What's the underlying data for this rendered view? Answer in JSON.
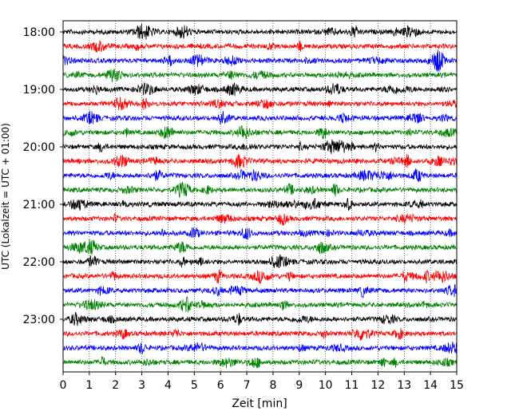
{
  "chart_data": {
    "type": "line",
    "chart_kind": "helicorder",
    "title": "",
    "xlabel": "Zeit  [min]",
    "ylabel": "UTC (Lokalzeit = UTC + 01:00)",
    "xlim": [
      0,
      15
    ],
    "x_ticks": [
      0,
      1,
      2,
      3,
      4,
      5,
      6,
      7,
      8,
      9,
      10,
      11,
      12,
      13,
      14,
      15
    ],
    "x_tick_labels": [
      "0",
      "1",
      "2",
      "3",
      "4",
      "5",
      "6",
      "7",
      "8",
      "9",
      "10",
      "11",
      "12",
      "13",
      "14",
      "15"
    ],
    "y_ticks": [
      {
        "label": "18:00",
        "row": 0
      },
      {
        "label": "19:00",
        "row": 4
      },
      {
        "label": "20:00",
        "row": 8
      },
      {
        "label": "21:00",
        "row": 12
      },
      {
        "label": "22:00",
        "row": 16
      },
      {
        "label": "23:00",
        "row": 20
      }
    ],
    "row_count": 24,
    "row_minutes": 15,
    "color_cycle": [
      "#000000",
      "#ff0000",
      "#0000ff",
      "#008000"
    ],
    "grid": {
      "vertical": true,
      "style": "dotted"
    },
    "legend": "none"
  }
}
